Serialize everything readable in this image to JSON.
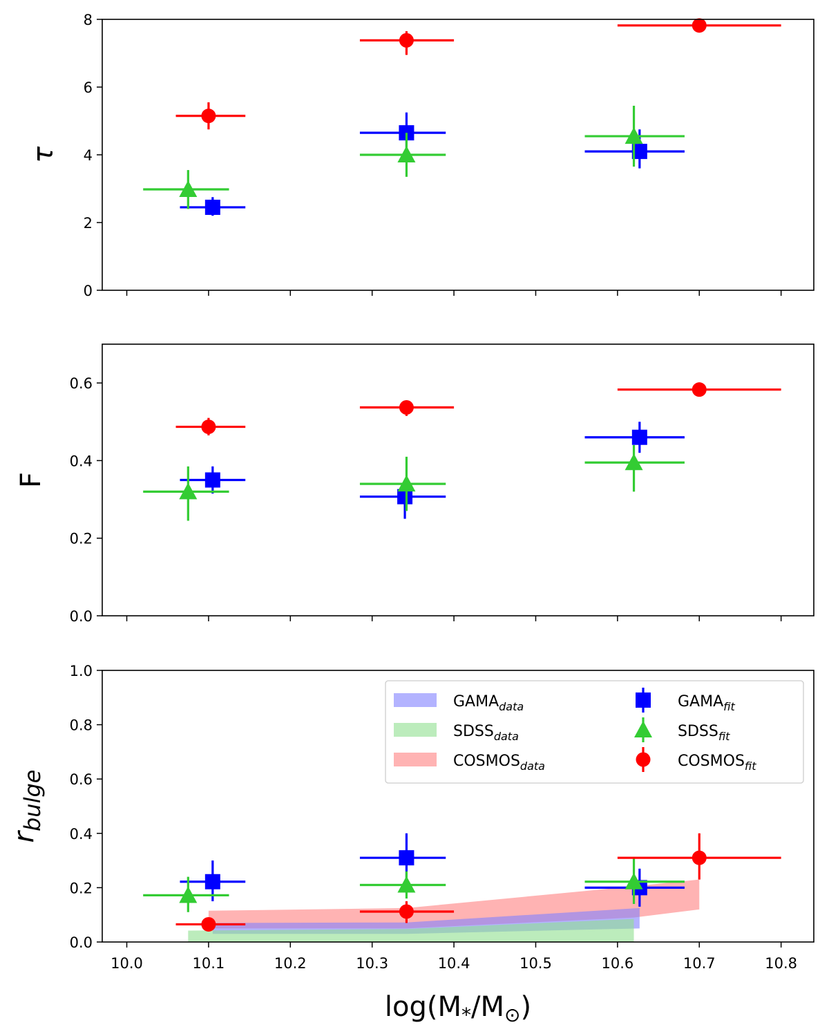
{
  "chart_data": [
    {
      "type": "scatter",
      "panel": "top",
      "ylabel": "τ",
      "ylim": [
        0,
        8
      ],
      "yticks": [
        0,
        2,
        4,
        6,
        8
      ],
      "xlim": [
        9.97,
        10.84
      ],
      "series": [
        {
          "name": "GAMA",
          "color": "#0000ff",
          "marker": "square",
          "points": [
            {
              "x": 10.105,
              "xerr": [
                10.065,
                10.145
              ],
              "y": 2.45,
              "yerr": [
                2.2,
                2.75
              ]
            },
            {
              "x": 10.342,
              "xerr": [
                10.285,
                10.39
              ],
              "y": 4.65,
              "yerr": [
                4.1,
                5.25
              ]
            },
            {
              "x": 10.627,
              "xerr": [
                10.56,
                10.682
              ],
              "y": 4.1,
              "yerr": [
                3.6,
                4.75
              ]
            }
          ]
        },
        {
          "name": "SDSS",
          "color": "#33cc33",
          "marker": "triangle",
          "points": [
            {
              "x": 10.075,
              "xerr": [
                10.02,
                10.125
              ],
              "y": 2.98,
              "yerr": [
                2.4,
                3.55
              ]
            },
            {
              "x": 10.342,
              "xerr": [
                10.285,
                10.39
              ],
              "y": 4.0,
              "yerr": [
                3.35,
                4.65
              ]
            },
            {
              "x": 10.62,
              "xerr": [
                10.56,
                10.682
              ],
              "y": 4.55,
              "yerr": [
                3.65,
                5.45
              ]
            }
          ]
        },
        {
          "name": "COSMOS",
          "color": "#ff0000",
          "marker": "circle",
          "points": [
            {
              "x": 10.1,
              "xerr": [
                10.06,
                10.145
              ],
              "y": 5.15,
              "yerr": [
                4.75,
                5.55
              ]
            },
            {
              "x": 10.342,
              "xerr": [
                10.285,
                10.4
              ],
              "y": 7.38,
              "yerr": [
                6.95,
                7.65
              ]
            },
            {
              "x": 10.7,
              "xerr": [
                10.6,
                10.8
              ],
              "y": 7.82,
              "yerr": [
                7.8,
                7.85
              ]
            }
          ]
        }
      ]
    },
    {
      "type": "scatter",
      "panel": "middle",
      "ylabel": "F",
      "ylim": [
        0,
        0.7
      ],
      "yticks": [
        0.0,
        0.2,
        0.4,
        0.6
      ],
      "xlim": [
        9.97,
        10.84
      ],
      "series": [
        {
          "name": "GAMA",
          "color": "#0000ff",
          "marker": "square",
          "points": [
            {
              "x": 10.105,
              "xerr": [
                10.065,
                10.145
              ],
              "y": 0.35,
              "yerr": [
                0.315,
                0.385
              ]
            },
            {
              "x": 10.34,
              "xerr": [
                10.285,
                10.39
              ],
              "y": 0.307,
              "yerr": [
                0.25,
                0.35
              ]
            },
            {
              "x": 10.627,
              "xerr": [
                10.56,
                10.682
              ],
              "y": 0.46,
              "yerr": [
                0.42,
                0.5
              ]
            }
          ]
        },
        {
          "name": "SDSS",
          "color": "#33cc33",
          "marker": "triangle",
          "points": [
            {
              "x": 10.075,
              "xerr": [
                10.02,
                10.125
              ],
              "y": 0.32,
              "yerr": [
                0.245,
                0.385
              ]
            },
            {
              "x": 10.342,
              "xerr": [
                10.285,
                10.39
              ],
              "y": 0.34,
              "yerr": [
                0.27,
                0.41
              ]
            },
            {
              "x": 10.62,
              "xerr": [
                10.56,
                10.682
              ],
              "y": 0.395,
              "yerr": [
                0.32,
                0.44
              ]
            }
          ]
        },
        {
          "name": "COSMOS",
          "color": "#ff0000",
          "marker": "circle",
          "points": [
            {
              "x": 10.1,
              "xerr": [
                10.06,
                10.145
              ],
              "y": 0.487,
              "yerr": [
                0.465,
                0.51
              ]
            },
            {
              "x": 10.342,
              "xerr": [
                10.285,
                10.4
              ],
              "y": 0.537,
              "yerr": [
                0.515,
                0.555
              ]
            },
            {
              "x": 10.7,
              "xerr": [
                10.6,
                10.8
              ],
              "y": 0.583,
              "yerr": [
                0.583,
                0.583
              ]
            }
          ]
        }
      ]
    },
    {
      "type": "scatter",
      "panel": "bottom",
      "ylabel": "r",
      "ylabel_sub": "bulge",
      "ylim": [
        0,
        1.0
      ],
      "yticks": [
        0.0,
        0.2,
        0.4,
        0.6,
        0.8,
        1.0
      ],
      "xlim": [
        9.97,
        10.84
      ],
      "xticks": [
        10.0,
        10.1,
        10.2,
        10.3,
        10.4,
        10.5,
        10.6,
        10.7,
        10.8
      ],
      "xticklabels": [
        "10.0",
        "10.1",
        "10.2",
        "10.3",
        "10.4",
        "10.5",
        "10.6",
        "10.7",
        "10.8"
      ],
      "xlabel": "log(M",
      "xlabel_sub": "*",
      "xlabel_mid": "/M",
      "xlabel_sun": "⊙",
      "xlabel_end": ")",
      "bands": [
        {
          "name": "COSMOS",
          "color": "#ff8080",
          "opacity": 0.6,
          "upper": [
            [
              10.1,
              0.115
            ],
            [
              10.342,
              0.125
            ],
            [
              10.62,
              0.205
            ],
            [
              10.7,
              0.23
            ]
          ],
          "lower": [
            [
              10.1,
              0.05
            ],
            [
              10.342,
              0.05
            ],
            [
              10.62,
              0.09
            ],
            [
              10.7,
              0.12
            ]
          ]
        },
        {
          "name": "GAMA",
          "color": "#8080ff",
          "opacity": 0.6,
          "upper": [
            [
              10.105,
              0.07
            ],
            [
              10.342,
              0.072
            ],
            [
              10.627,
              0.125
            ]
          ],
          "lower": [
            [
              10.105,
              0.03
            ],
            [
              10.342,
              0.03
            ],
            [
              10.627,
              0.05
            ]
          ]
        },
        {
          "name": "SDSS",
          "color": "#90e090",
          "opacity": 0.6,
          "upper": [
            [
              10.075,
              0.042
            ],
            [
              10.342,
              0.048
            ],
            [
              10.62,
              0.085
            ]
          ],
          "lower": [
            [
              10.075,
              0.0
            ],
            [
              10.342,
              0.0
            ],
            [
              10.62,
              0.0
            ]
          ]
        }
      ],
      "series": [
        {
          "name": "GAMA",
          "color": "#0000ff",
          "marker": "square",
          "points": [
            {
              "x": 10.105,
              "xerr": [
                10.065,
                10.145
              ],
              "y": 0.222,
              "yerr": [
                0.15,
                0.3
              ]
            },
            {
              "x": 10.342,
              "xerr": [
                10.285,
                10.39
              ],
              "y": 0.31,
              "yerr": [
                0.22,
                0.4
              ]
            },
            {
              "x": 10.627,
              "xerr": [
                10.56,
                10.682
              ],
              "y": 0.2,
              "yerr": [
                0.13,
                0.27
              ]
            }
          ]
        },
        {
          "name": "SDSS",
          "color": "#33cc33",
          "marker": "triangle",
          "points": [
            {
              "x": 10.075,
              "xerr": [
                10.02,
                10.125
              ],
              "y": 0.172,
              "yerr": [
                0.11,
                0.24
              ]
            },
            {
              "x": 10.342,
              "xerr": [
                10.285,
                10.39
              ],
              "y": 0.21,
              "yerr": [
                0.16,
                0.26
              ]
            },
            {
              "x": 10.62,
              "xerr": [
                10.56,
                10.682
              ],
              "y": 0.222,
              "yerr": [
                0.14,
                0.31
              ]
            }
          ]
        },
        {
          "name": "COSMOS",
          "color": "#ff0000",
          "marker": "circle",
          "points": [
            {
              "x": 10.1,
              "xerr": [
                10.06,
                10.145
              ],
              "y": 0.065,
              "yerr": [
                0.04,
                0.09
              ]
            },
            {
              "x": 10.342,
              "xerr": [
                10.285,
                10.4
              ],
              "y": 0.112,
              "yerr": [
                0.07,
                0.15
              ]
            },
            {
              "x": 10.7,
              "xerr": [
                10.6,
                10.8
              ],
              "y": 0.31,
              "yerr": [
                0.23,
                0.4
              ]
            }
          ]
        }
      ],
      "legend": {
        "placement": "upper-right",
        "entries": [
          {
            "label": "GAMA",
            "sub": "data",
            "kind": "band",
            "color": "#8080ff"
          },
          {
            "label": "SDSS",
            "sub": "data",
            "kind": "band",
            "color": "#90e090"
          },
          {
            "label": "COSMOS",
            "sub": "data",
            "kind": "band",
            "color": "#ff8080"
          },
          {
            "label": "GAMA",
            "sub": "fit",
            "kind": "marker",
            "marker": "square",
            "color": "#0000ff"
          },
          {
            "label": "SDSS",
            "sub": "fit",
            "kind": "marker",
            "marker": "triangle",
            "color": "#33cc33"
          },
          {
            "label": "COSMOS",
            "sub": "fit",
            "kind": "marker",
            "marker": "circle",
            "color": "#ff0000"
          }
        ]
      }
    }
  ]
}
